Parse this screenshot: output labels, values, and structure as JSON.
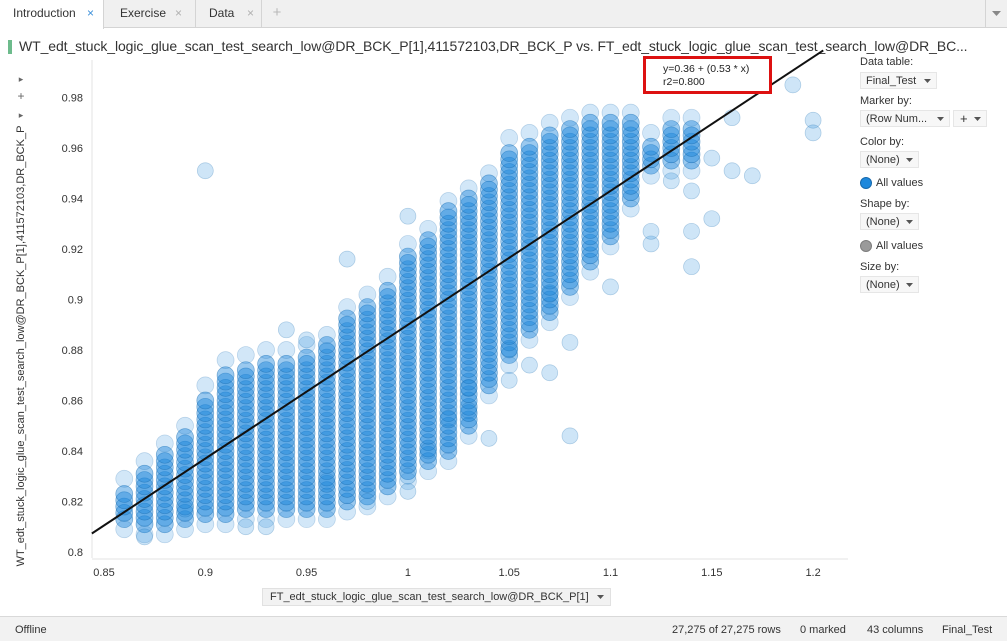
{
  "tabs": [
    {
      "label": "Introduction",
      "active": true
    },
    {
      "label": "Exercise",
      "active": false
    },
    {
      "label": "Data",
      "active": false
    }
  ],
  "viz": {
    "title": "WT_edt_stuck_logic_glue_scan_test_search_low@DR_BCK_P[1],411572103,DR_BCK_P vs. FT_edt_stuck_logic_glue_scan_test_search_low@DR_BC...",
    "y_axis_label": "WT_edt_stuck_logic_glue_scan_test_search_low@DR_BCK_P[1],411572103,DR_BCK_P",
    "x_axis_selector": "FT_edt_stuck_logic_glue_scan_test_search_low@DR_BCK_P[1]",
    "regression_line1": "y=0.36 + (0.53 * x)",
    "regression_line2": "r2=0.800"
  },
  "legend": {
    "data_table_label": "Data table:",
    "data_table_value": "Final_Test",
    "marker_by_label": "Marker by:",
    "marker_by_value": "(Row Num...",
    "plus_label": "+",
    "color_by_label": "Color by:",
    "color_by_value": "(None)",
    "color_item": "All values",
    "shape_by_label": "Shape by:",
    "shape_by_value": "(None)",
    "shape_item": "All values",
    "size_by_label": "Size by:",
    "size_by_value": "(None)"
  },
  "status": {
    "connection": "Offline",
    "rows": "27,275 of 27,275 rows",
    "marked": "0 marked",
    "columns": "43 columns",
    "table": "Final_Test"
  },
  "colors": {
    "marker": "#1e88dc",
    "marker_stroke": "#1669ad",
    "fit_line": "#111111",
    "highlight_box": "#dd1111"
  },
  "chart_data": {
    "type": "scatter",
    "xlabel": "FT_edt_stuck_logic_glue_scan_test_search_low@DR_BCK_P[1]",
    "ylabel": "WT_edt_stuck_logic_glue_scan_test_search_low@DR_BCK_P[1],411572103,DR_BCK_P",
    "xlim": [
      0.84,
      1.22
    ],
    "ylim": [
      0.8,
      0.99
    ],
    "xticks": [
      "0.85",
      "0.9",
      "0.95",
      "1",
      "1.05",
      "1.1",
      "1.15",
      "1.2"
    ],
    "yticks": [
      "0.8",
      "0.82",
      "0.84",
      "0.86",
      "0.88",
      "0.9",
      "0.92",
      "0.94",
      "0.96",
      "0.98"
    ],
    "fit": {
      "intercept": 0.36,
      "slope": 0.53,
      "r2": 0.8
    },
    "columns": [
      {
        "x": 0.86,
        "ymin": 0.813,
        "ymax": 0.825
      },
      {
        "x": 0.87,
        "ymin": 0.811,
        "ymax": 0.832
      },
      {
        "x": 0.88,
        "ymin": 0.811,
        "ymax": 0.839
      },
      {
        "x": 0.89,
        "ymin": 0.813,
        "ymax": 0.846
      },
      {
        "x": 0.9,
        "ymin": 0.815,
        "ymax": 0.862
      },
      {
        "x": 0.91,
        "ymin": 0.815,
        "ymax": 0.872
      },
      {
        "x": 0.92,
        "ymin": 0.817,
        "ymax": 0.874
      },
      {
        "x": 0.93,
        "ymin": 0.817,
        "ymax": 0.876
      },
      {
        "x": 0.94,
        "ymin": 0.817,
        "ymax": 0.876
      },
      {
        "x": 0.95,
        "ymin": 0.817,
        "ymax": 0.878
      },
      {
        "x": 0.96,
        "ymin": 0.817,
        "ymax": 0.882
      },
      {
        "x": 0.97,
        "ymin": 0.82,
        "ymax": 0.893
      },
      {
        "x": 0.98,
        "ymin": 0.822,
        "ymax": 0.898
      },
      {
        "x": 0.99,
        "ymin": 0.826,
        "ymax": 0.905
      },
      {
        "x": 1.0,
        "ymin": 0.832,
        "ymax": 0.918
      },
      {
        "x": 1.01,
        "ymin": 0.836,
        "ymax": 0.924
      },
      {
        "x": 1.02,
        "ymin": 0.84,
        "ymax": 0.935
      },
      {
        "x": 1.03,
        "ymin": 0.85,
        "ymax": 0.94
      },
      {
        "x": 1.04,
        "ymin": 0.866,
        "ymax": 0.946
      },
      {
        "x": 1.05,
        "ymin": 0.878,
        "ymax": 0.96
      },
      {
        "x": 1.06,
        "ymin": 0.888,
        "ymax": 0.962
      },
      {
        "x": 1.07,
        "ymin": 0.895,
        "ymax": 0.966
      },
      {
        "x": 1.08,
        "ymin": 0.905,
        "ymax": 0.968
      },
      {
        "x": 1.09,
        "ymin": 0.915,
        "ymax": 0.97
      },
      {
        "x": 1.1,
        "ymin": 0.925,
        "ymax": 0.97
      },
      {
        "x": 1.11,
        "ymin": 0.94,
        "ymax": 0.97
      },
      {
        "x": 1.12,
        "ymin": 0.953,
        "ymax": 0.962
      },
      {
        "x": 1.13,
        "ymin": 0.955,
        "ymax": 0.968
      },
      {
        "x": 1.14,
        "ymin": 0.955,
        "ymax": 0.968
      }
    ],
    "outliers": [
      [
        0.9,
        0.951
      ],
      [
        1.2,
        0.971
      ],
      [
        1.2,
        0.966
      ],
      [
        1.19,
        0.985
      ],
      [
        1.17,
        0.949
      ],
      [
        1.16,
        0.951
      ],
      [
        1.16,
        0.972
      ],
      [
        1.15,
        0.956
      ],
      [
        1.15,
        0.932
      ],
      [
        1.14,
        0.943
      ],
      [
        1.14,
        0.927
      ],
      [
        1.14,
        0.913
      ],
      [
        1.13,
        0.947
      ],
      [
        1.12,
        0.922
      ],
      [
        1.12,
        0.927
      ],
      [
        1.1,
        0.905
      ],
      [
        1.08,
        0.883
      ],
      [
        1.07,
        0.871
      ],
      [
        1.07,
        0.902
      ],
      [
        1.05,
        0.868
      ],
      [
        1.05,
        0.88
      ],
      [
        1.03,
        0.856
      ],
      [
        1.03,
        0.865
      ],
      [
        1.02,
        0.853
      ],
      [
        1.04,
        0.845
      ],
      [
        1.01,
        0.84
      ],
      [
        1.0,
        0.824
      ],
      [
        1.0,
        0.83
      ],
      [
        0.96,
        0.828
      ],
      [
        0.97,
        0.916
      ],
      [
        0.98,
        0.82
      ],
      [
        0.93,
        0.81
      ],
      [
        0.94,
        0.888
      ],
      [
        0.95,
        0.884
      ],
      [
        1.0,
        0.933
      ],
      [
        1.06,
        0.874
      ],
      [
        1.08,
        0.846
      ],
      [
        0.89,
        0.817
      ],
      [
        0.87,
        0.806
      ],
      [
        0.92,
        0.81
      ]
    ]
  }
}
